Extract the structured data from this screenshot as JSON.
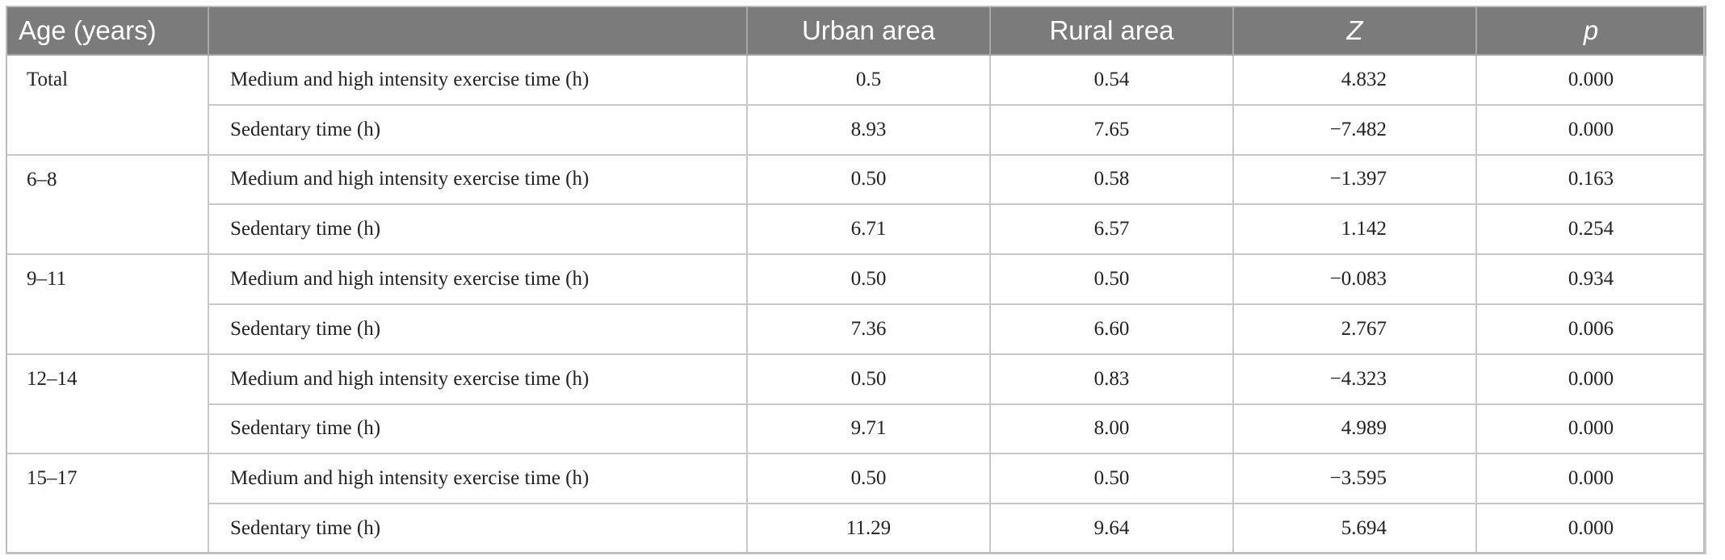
{
  "header": {
    "age": "Age (years)",
    "metric": "",
    "urban": "Urban area",
    "rural": "Rural area",
    "z": "Z",
    "p": "p"
  },
  "groups": [
    {
      "age": "Total",
      "rows": [
        {
          "metric": "Medium and high intensity exercise time (h)",
          "urban": "0.5",
          "rural": "0.54",
          "z": "4.832",
          "p": "0.000"
        },
        {
          "metric": "Sedentary time (h)",
          "urban": "8.93",
          "rural": "7.65",
          "z": "−7.482",
          "p": "0.000"
        }
      ]
    },
    {
      "age": "6–8",
      "rows": [
        {
          "metric": "Medium and high intensity exercise time (h)",
          "urban": "0.50",
          "rural": "0.58",
          "z": "−1.397",
          "p": "0.163"
        },
        {
          "metric": "Sedentary time (h)",
          "urban": "6.71",
          "rural": "6.57",
          "z": "1.142",
          "p": "0.254"
        }
      ]
    },
    {
      "age": "9–11",
      "rows": [
        {
          "metric": "Medium and high intensity exercise time (h)",
          "urban": "0.50",
          "rural": "0.50",
          "z": "−0.083",
          "p": "0.934"
        },
        {
          "metric": "Sedentary time (h)",
          "urban": "7.36",
          "rural": "6.60",
          "z": "2.767",
          "p": "0.006"
        }
      ]
    },
    {
      "age": "12–14",
      "rows": [
        {
          "metric": "Medium and high intensity exercise time (h)",
          "urban": "0.50",
          "rural": "0.83",
          "z": "−4.323",
          "p": "0.000"
        },
        {
          "metric": "Sedentary time (h)",
          "urban": "9.71",
          "rural": "8.00",
          "z": "4.989",
          "p": "0.000"
        }
      ]
    },
    {
      "age": "15–17",
      "rows": [
        {
          "metric": "Medium and high intensity exercise time (h)",
          "urban": "0.50",
          "rural": "0.50",
          "z": "−3.595",
          "p": "0.000"
        },
        {
          "metric": "Sedentary time (h)",
          "urban": "11.29",
          "rural": "9.64",
          "z": "5.694",
          "p": "0.000"
        }
      ]
    }
  ]
}
